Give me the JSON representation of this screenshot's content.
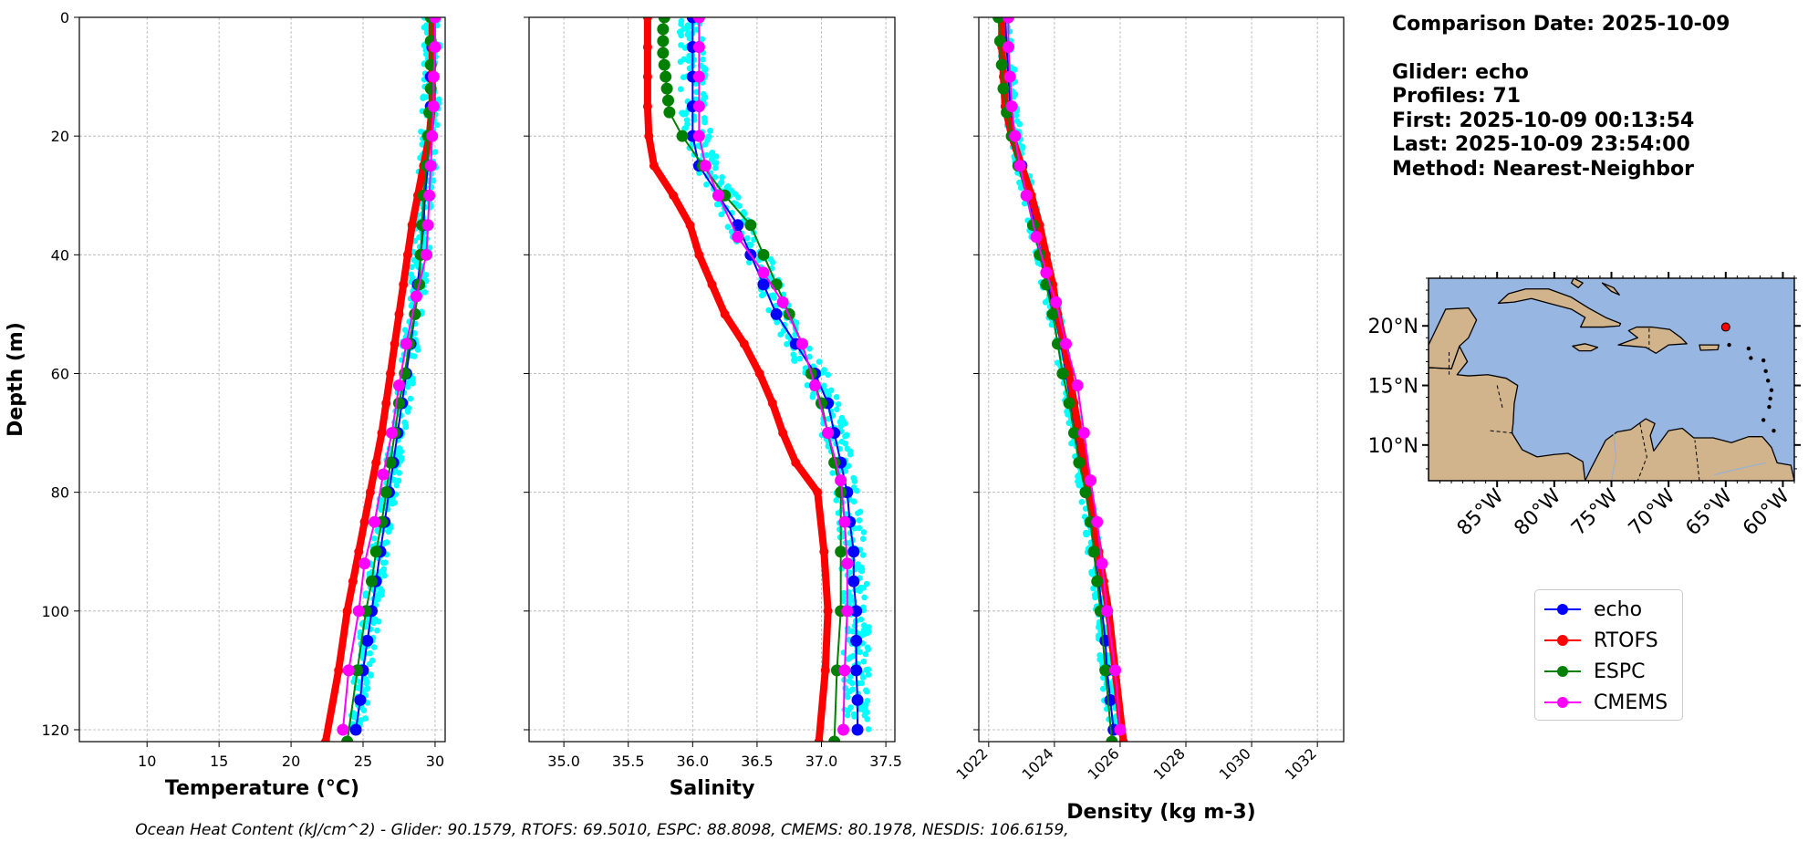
{
  "info": {
    "comparison_date": "Comparison Date: 2025-10-09",
    "glider": "Glider: echo",
    "profiles": "Profiles: 71",
    "first": "First: 2025-10-09 00:13:54",
    "last": "Last: 2025-10-09 23:54:00",
    "method": "Method: Nearest-Neighbor"
  },
  "footer": "Ocean Heat Content (kJ/cm^2) - Glider: 90.1579,  RTOFS: 69.5010,  ESPC: 88.8098,  CMEMS: 80.1978,  NESDIS: 106.6159,",
  "legend": [
    {
      "label": "echo",
      "color": "#0000ff"
    },
    {
      "label": "RTOFS",
      "color": "#ff0000"
    },
    {
      "label": "ESPC",
      "color": "#008000"
    },
    {
      "label": "CMEMS",
      "color": "#ff00ff"
    }
  ],
  "map": {
    "lat_ticks": [
      "20°N",
      "15°N",
      "10°N"
    ],
    "lat_values": [
      20,
      15,
      10
    ],
    "lon_ticks": [
      "85°W",
      "80°W",
      "75°W",
      "70°W",
      "65°W",
      "60°W"
    ],
    "lon_values": [
      -85,
      -80,
      -75,
      -70,
      -65,
      -60
    ],
    "lon_range": [
      -91,
      -59
    ],
    "lat_range": [
      7,
      24
    ],
    "marker": {
      "lon": -65,
      "lat": 19.9
    },
    "ocean_color": "#98b6e2",
    "land_color": "#d2b48c"
  },
  "chart_data": [
    {
      "type": "line",
      "title": "",
      "xlabel": "Temperature (°C)",
      "ylabel": "Depth (m)",
      "xlim": [
        5.3,
        30.7
      ],
      "ylim": [
        122,
        0
      ],
      "xticks": [
        10,
        15,
        20,
        25,
        30
      ],
      "yticks": [
        0,
        20,
        40,
        60,
        80,
        100,
        120
      ],
      "grid": true,
      "series": [
        {
          "name": "glider obs",
          "style": "scatter",
          "color": "#00ffff",
          "depth": [
            0,
            5,
            10,
            15,
            20,
            25,
            30,
            35,
            40,
            45,
            50,
            55,
            60,
            65,
            70,
            75,
            80,
            85,
            90,
            95,
            100,
            105,
            110,
            115,
            120
          ],
          "values": [
            29.8,
            29.8,
            29.7,
            29.7,
            29.6,
            29.5,
            29.3,
            29.2,
            29.0,
            28.8,
            28.6,
            28.3,
            28.0,
            27.7,
            27.4,
            27.1,
            26.8,
            26.5,
            26.2,
            25.9,
            25.6,
            25.3,
            25.0,
            24.8,
            24.5
          ],
          "spread": 0.6
        },
        {
          "name": "echo",
          "color": "#0000ff",
          "depth": [
            0,
            5,
            10,
            15,
            20,
            25,
            30,
            35,
            40,
            45,
            50,
            55,
            60,
            65,
            70,
            75,
            80,
            85,
            90,
            95,
            100,
            105,
            110,
            115,
            120
          ],
          "values": [
            29.8,
            29.8,
            29.7,
            29.7,
            29.6,
            29.5,
            29.3,
            29.2,
            29.0,
            28.8,
            28.6,
            28.3,
            28.0,
            27.7,
            27.4,
            27.1,
            26.8,
            26.5,
            26.2,
            25.9,
            25.6,
            25.3,
            25.0,
            24.8,
            24.5
          ]
        },
        {
          "name": "RTOFS",
          "color": "#ff0000",
          "depth": [
            0,
            5,
            10,
            15,
            20,
            25,
            30,
            35,
            40,
            45,
            50,
            55,
            60,
            65,
            70,
            75,
            80,
            85,
            90,
            95,
            100,
            110,
            122
          ],
          "values": [
            29.8,
            29.8,
            29.8,
            29.8,
            29.6,
            29.2,
            28.8,
            28.4,
            28.1,
            27.8,
            27.5,
            27.2,
            26.9,
            26.6,
            26.3,
            25.9,
            25.5,
            25.1,
            24.7,
            24.3,
            23.9,
            23.3,
            22.4
          ]
        },
        {
          "name": "ESPC",
          "color": "#008000",
          "depth": [
            0,
            4,
            8,
            12,
            16,
            20,
            25,
            30,
            35,
            40,
            45,
            50,
            55,
            60,
            65,
            70,
            75,
            80,
            85,
            90,
            95,
            100,
            110,
            122
          ],
          "values": [
            29.7,
            29.7,
            29.7,
            29.7,
            29.6,
            29.5,
            29.4,
            29.2,
            29.1,
            29.0,
            28.9,
            28.6,
            28.2,
            27.9,
            27.5,
            27.2,
            26.9,
            26.6,
            26.3,
            25.9,
            25.6,
            25.2,
            24.6,
            23.9
          ]
        },
        {
          "name": "CMEMS",
          "color": "#ff00ff",
          "depth": [
            0,
            5,
            10,
            15,
            20,
            25,
            30,
            35,
            40,
            47,
            55,
            62,
            70,
            77,
            85,
            92,
            100,
            110,
            120
          ],
          "values": [
            30.0,
            30.0,
            29.9,
            29.9,
            29.8,
            29.7,
            29.6,
            29.5,
            29.4,
            28.7,
            28.0,
            27.5,
            27.0,
            26.4,
            25.8,
            25.1,
            24.7,
            24.0,
            23.6
          ]
        }
      ]
    },
    {
      "type": "line",
      "title": "",
      "xlabel": "Salinity",
      "ylabel": "",
      "xlim": [
        34.73,
        37.57
      ],
      "ylim": [
        122,
        0
      ],
      "xticks": [
        35.0,
        35.5,
        36.0,
        36.5,
        37.0,
        37.5
      ],
      "xtick_labels": [
        "35.0",
        "35.5",
        "36.0",
        "36.5",
        "37.0",
        "37.5"
      ],
      "yticks": [
        0,
        20,
        40,
        60,
        80,
        100,
        120
      ],
      "grid": true,
      "series": [
        {
          "name": "glider obs",
          "style": "scatter",
          "color": "#00ffff",
          "depth": [
            0,
            5,
            10,
            15,
            20,
            25,
            30,
            35,
            40,
            45,
            50,
            55,
            60,
            65,
            70,
            75,
            80,
            85,
            90,
            95,
            100,
            105,
            110,
            115,
            120
          ],
          "values": [
            36.0,
            36.0,
            36.0,
            36.0,
            36.05,
            36.1,
            36.25,
            36.35,
            36.5,
            36.6,
            36.7,
            36.8,
            36.95,
            37.05,
            37.1,
            37.15,
            37.2,
            37.22,
            37.25,
            37.25,
            37.27,
            37.27,
            37.27,
            37.27,
            37.27
          ],
          "spread": 0.1
        },
        {
          "name": "echo",
          "color": "#0000ff",
          "depth": [
            0,
            5,
            10,
            15,
            20,
            25,
            30,
            35,
            40,
            45,
            50,
            55,
            60,
            65,
            70,
            75,
            80,
            85,
            90,
            95,
            100,
            105,
            110,
            115,
            120
          ],
          "values": [
            36.0,
            36.0,
            36.0,
            36.0,
            36.0,
            36.05,
            36.2,
            36.35,
            36.45,
            36.55,
            36.65,
            36.8,
            36.95,
            37.05,
            37.1,
            37.15,
            37.2,
            37.22,
            37.25,
            37.25,
            37.27,
            37.27,
            37.27,
            37.28,
            37.28
          ]
        },
        {
          "name": "RTOFS",
          "color": "#ff0000",
          "depth": [
            0,
            5,
            10,
            15,
            20,
            25,
            30,
            35,
            40,
            45,
            50,
            55,
            60,
            65,
            70,
            75,
            80,
            90,
            100,
            110,
            122
          ],
          "values": [
            35.65,
            35.65,
            35.65,
            35.65,
            35.66,
            35.7,
            35.85,
            35.98,
            36.05,
            36.15,
            36.25,
            36.4,
            36.52,
            36.62,
            36.7,
            36.8,
            36.97,
            37.02,
            37.05,
            37.03,
            36.98
          ]
        },
        {
          "name": "ESPC",
          "color": "#008000",
          "depth": [
            0,
            2,
            4,
            6,
            8,
            10,
            12,
            14,
            16,
            20,
            25,
            30,
            35,
            40,
            45,
            50,
            55,
            60,
            65,
            70,
            75,
            80,
            90,
            100,
            110,
            122
          ],
          "values": [
            35.78,
            35.77,
            35.77,
            35.77,
            35.78,
            35.79,
            35.8,
            35.81,
            35.82,
            35.92,
            36.08,
            36.25,
            36.45,
            36.55,
            36.65,
            36.75,
            36.85,
            36.92,
            37.0,
            37.05,
            37.1,
            37.15,
            37.15,
            37.15,
            37.12,
            37.1
          ]
        },
        {
          "name": "CMEMS",
          "color": "#ff00ff",
          "depth": [
            0,
            5,
            10,
            15,
            20,
            25,
            30,
            37,
            43,
            48,
            55,
            62,
            70,
            78,
            85,
            92,
            100,
            110,
            120
          ],
          "values": [
            36.05,
            36.05,
            36.05,
            36.05,
            36.05,
            36.1,
            36.2,
            36.35,
            36.55,
            36.7,
            36.85,
            36.95,
            37.05,
            37.15,
            37.18,
            37.2,
            37.2,
            37.18,
            37.17
          ]
        }
      ]
    },
    {
      "type": "line",
      "title": "",
      "xlabel": "Density (kg m-3)",
      "ylabel": "",
      "xlim": [
        1021.7,
        1032.8
      ],
      "ylim": [
        122,
        0
      ],
      "xticks": [
        1022,
        1024,
        1026,
        1028,
        1030,
        1032
      ],
      "xtick_labels": [
        "1022",
        "1024",
        "1026",
        "1028",
        "1030",
        "1032"
      ],
      "yticks": [
        0,
        20,
        40,
        60,
        80,
        100,
        120
      ],
      "grid": true,
      "series": [
        {
          "name": "glider obs",
          "style": "scatter",
          "color": "#00ffff",
          "depth": [
            0,
            5,
            10,
            15,
            20,
            25,
            30,
            35,
            40,
            45,
            50,
            55,
            60,
            65,
            70,
            75,
            80,
            85,
            90,
            95,
            100,
            105,
            110,
            115,
            120
          ],
          "values": [
            1022.5,
            1022.55,
            1022.6,
            1022.65,
            1022.8,
            1023.0,
            1023.2,
            1023.4,
            1023.6,
            1023.8,
            1024.0,
            1024.2,
            1024.35,
            1024.5,
            1024.65,
            1024.8,
            1024.95,
            1025.1,
            1025.2,
            1025.35,
            1025.45,
            1025.55,
            1025.6,
            1025.7,
            1025.8
          ],
          "spread": 0.2
        },
        {
          "name": "echo",
          "color": "#0000ff",
          "depth": [
            0,
            5,
            10,
            15,
            20,
            25,
            30,
            35,
            40,
            45,
            50,
            55,
            60,
            65,
            70,
            75,
            80,
            85,
            90,
            95,
            100,
            105,
            110,
            115,
            120
          ],
          "values": [
            1022.5,
            1022.55,
            1022.6,
            1022.65,
            1022.8,
            1023.0,
            1023.2,
            1023.4,
            1023.6,
            1023.8,
            1024.0,
            1024.2,
            1024.35,
            1024.5,
            1024.65,
            1024.8,
            1024.95,
            1025.1,
            1025.2,
            1025.35,
            1025.45,
            1025.55,
            1025.6,
            1025.7,
            1025.8
          ]
        },
        {
          "name": "RTOFS",
          "color": "#ff0000",
          "depth": [
            0,
            5,
            10,
            15,
            20,
            25,
            30,
            35,
            40,
            45,
            50,
            55,
            60,
            65,
            70,
            75,
            80,
            85,
            90,
            95,
            100,
            110,
            122
          ],
          "values": [
            1022.4,
            1022.4,
            1022.45,
            1022.5,
            1022.7,
            1023.0,
            1023.3,
            1023.55,
            1023.75,
            1023.95,
            1024.1,
            1024.3,
            1024.45,
            1024.6,
            1024.75,
            1024.9,
            1025.05,
            1025.2,
            1025.35,
            1025.5,
            1025.65,
            1025.85,
            1026.1
          ]
        },
        {
          "name": "ESPC",
          "color": "#008000",
          "depth": [
            0,
            4,
            8,
            12,
            16,
            20,
            25,
            30,
            35,
            40,
            45,
            50,
            55,
            60,
            65,
            70,
            75,
            80,
            85,
            90,
            95,
            100,
            110,
            122
          ],
          "values": [
            1022.3,
            1022.35,
            1022.4,
            1022.45,
            1022.55,
            1022.7,
            1022.9,
            1023.15,
            1023.35,
            1023.55,
            1023.75,
            1023.95,
            1024.1,
            1024.25,
            1024.45,
            1024.6,
            1024.75,
            1024.95,
            1025.1,
            1025.2,
            1025.3,
            1025.4,
            1025.55,
            1025.75
          ]
        },
        {
          "name": "CMEMS",
          "color": "#ff00ff",
          "depth": [
            0,
            5,
            10,
            15,
            20,
            25,
            30,
            37,
            43,
            48,
            55,
            62,
            70,
            78,
            85,
            92,
            100,
            110,
            120
          ],
          "values": [
            1022.6,
            1022.6,
            1022.65,
            1022.7,
            1022.8,
            1022.95,
            1023.15,
            1023.45,
            1023.75,
            1024.05,
            1024.35,
            1024.7,
            1024.9,
            1025.1,
            1025.3,
            1025.45,
            1025.6,
            1025.85,
            1026.0
          ]
        }
      ]
    }
  ]
}
